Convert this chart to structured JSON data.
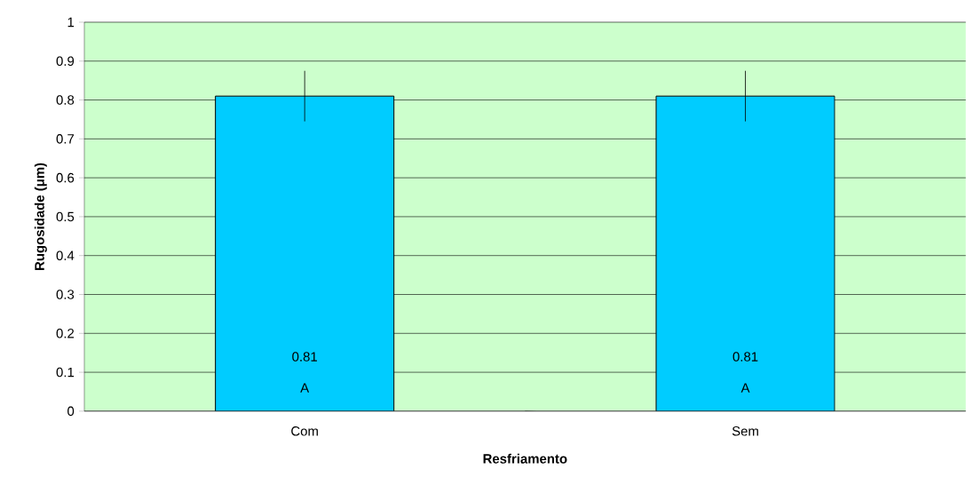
{
  "chart_data": {
    "type": "bar",
    "xlabel": "Resfriamento",
    "ylabel": "Rugosidade (μm)",
    "categories": [
      "Com",
      "Sem"
    ],
    "values": [
      0.81,
      0.81
    ],
    "errors": [
      0.065,
      0.065
    ],
    "value_labels": [
      "0.81",
      "0.81"
    ],
    "annotations": [
      "A",
      "A"
    ],
    "color": "#00ccff",
    "ylim": [
      0,
      1
    ],
    "yticks": [
      0,
      0.1,
      0.2,
      0.3,
      0.4,
      0.5,
      0.6,
      0.7,
      0.8,
      0.9,
      1
    ],
    "grid": "y"
  }
}
